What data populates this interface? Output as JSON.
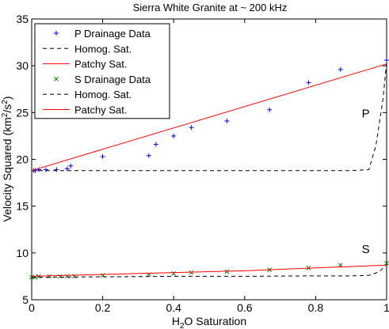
{
  "chart_data": {
    "type": "line",
    "title": "Sierra White Granite at  ~ 200 kHz",
    "xlabel": "H2O Saturation",
    "xlabel_parts": {
      "pre": "H",
      "sub": "2",
      "post": "O Saturation"
    },
    "ylabel": "Velocity Squared (km2/s2)",
    "ylabel_parts": {
      "pre": "Velocity Squared (km",
      "sup1": "2",
      "mid": "/s",
      "sup2": "2",
      "post": ")"
    },
    "xlim": [
      0,
      1
    ],
    "ylim": [
      5,
      35
    ],
    "xticks": [
      "0",
      "0.2",
      "0.4",
      "0.6",
      "0.8",
      "1"
    ],
    "yticks": [
      "5",
      "10",
      "15",
      "20",
      "25",
      "30",
      "35"
    ],
    "xtick_values": [
      0,
      0.2,
      0.4,
      0.6,
      0.8,
      1
    ],
    "ytick_values": [
      5,
      10,
      15,
      20,
      25,
      30,
      35
    ],
    "grid": false,
    "legend_position": "top-left",
    "annotations": [
      {
        "text": "P",
        "x": 0.93,
        "y": 24.5
      },
      {
        "text": "S",
        "x": 0.93,
        "y": 10.0
      }
    ],
    "series": [
      {
        "name": "P Drainage Data",
        "kind": "scatter",
        "marker": "+",
        "color": "#0000ff",
        "x": [
          0.005,
          0.01,
          0.02,
          0.04,
          0.07,
          0.1,
          0.11,
          0.2,
          0.33,
          0.35,
          0.4,
          0.45,
          0.55,
          0.67,
          0.78,
          0.87,
          1.0
        ],
        "y": [
          18.8,
          18.8,
          18.9,
          18.9,
          18.9,
          19.0,
          19.3,
          20.3,
          20.4,
          21.6,
          22.5,
          23.4,
          24.1,
          25.3,
          28.2,
          29.6,
          30.6
        ]
      },
      {
        "name": "Homog. Sat.",
        "kind": "line",
        "style": "dashed",
        "color": "#000000",
        "x": [
          0,
          0.2,
          0.4,
          0.6,
          0.8,
          0.9,
          0.95,
          0.97,
          0.99,
          1.0
        ],
        "y": [
          18.8,
          18.8,
          18.8,
          18.8,
          18.8,
          18.8,
          18.9,
          21.5,
          26.5,
          30.5
        ]
      },
      {
        "name": "Patchy Sat.",
        "kind": "line",
        "style": "solid",
        "color": "#ff0000",
        "x": [
          0,
          1.0
        ],
        "y": [
          18.8,
          30.2
        ]
      },
      {
        "name": "S Drainage Data",
        "kind": "scatter",
        "marker": "x",
        "color": "#008000",
        "x": [
          0.0,
          0.01,
          0.02,
          0.05,
          0.08,
          0.1,
          0.12,
          0.2,
          0.33,
          0.4,
          0.45,
          0.55,
          0.67,
          0.78,
          0.87,
          1.0
        ],
        "y": [
          7.4,
          7.4,
          7.5,
          7.5,
          7.5,
          7.5,
          7.5,
          7.6,
          7.7,
          7.8,
          7.9,
          8.0,
          8.2,
          8.4,
          8.7,
          8.9
        ]
      },
      {
        "name": "Homog. Sat.",
        "kind": "line",
        "style": "dashed",
        "color": "#000000",
        "x": [
          0,
          0.2,
          0.4,
          0.6,
          0.8,
          0.9,
          0.95,
          0.98,
          1.0
        ],
        "y": [
          7.4,
          7.45,
          7.5,
          7.5,
          7.55,
          7.55,
          7.6,
          8.0,
          8.8
        ]
      },
      {
        "name": "Patchy Sat.",
        "kind": "line",
        "style": "solid",
        "color": "#ff0000",
        "x": [
          0,
          0.2,
          0.4,
          0.6,
          0.8,
          1.0
        ],
        "y": [
          7.5,
          7.7,
          7.9,
          8.1,
          8.4,
          8.7
        ]
      }
    ]
  }
}
